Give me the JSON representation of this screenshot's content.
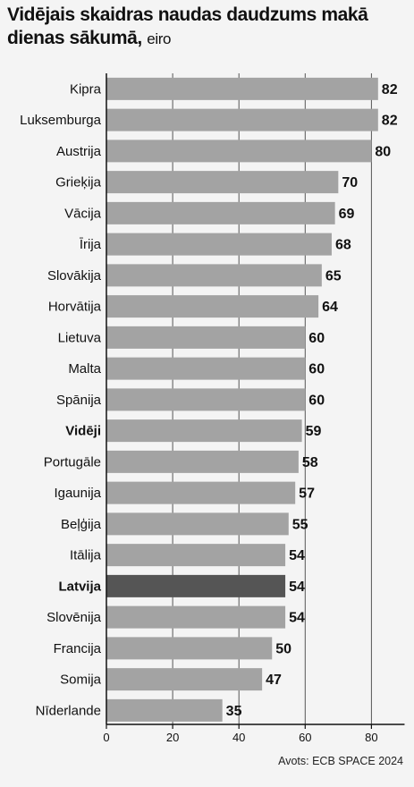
{
  "chart_data": {
    "type": "bar",
    "orientation": "horizontal",
    "title": "Vidējais skaidras naudas daudzums makā dienas sākumā,",
    "unit": "eiro",
    "categories": [
      "Kipra",
      "Luksemburga",
      "Austrija",
      "Grieķija",
      "Vācija",
      "Īrija",
      "Slovākija",
      "Horvātija",
      "Lietuva",
      "Malta",
      "Spānija",
      "Vidēji",
      "Portugāle",
      "Igaunija",
      "Beļģija",
      "Itālija",
      "Latvija",
      "Slovēnija",
      "Francija",
      "Somija",
      "Nīderlande"
    ],
    "values": [
      82,
      82,
      80,
      70,
      69,
      68,
      65,
      64,
      60,
      60,
      60,
      59,
      58,
      57,
      55,
      54,
      54,
      54,
      50,
      47,
      35
    ],
    "bold_categories": [
      "Vidēji",
      "Latvija"
    ],
    "highlight_categories": [
      "Latvija"
    ],
    "xlim": [
      0,
      90
    ],
    "xticks": [
      0,
      20,
      40,
      60,
      80
    ],
    "grid": true,
    "colors": {
      "bar": "#a3a3a3",
      "highlight": "#555555",
      "grid": "#555555",
      "background": "#f4f4f4"
    }
  },
  "source": "Avots: ECB SPACE 2024"
}
